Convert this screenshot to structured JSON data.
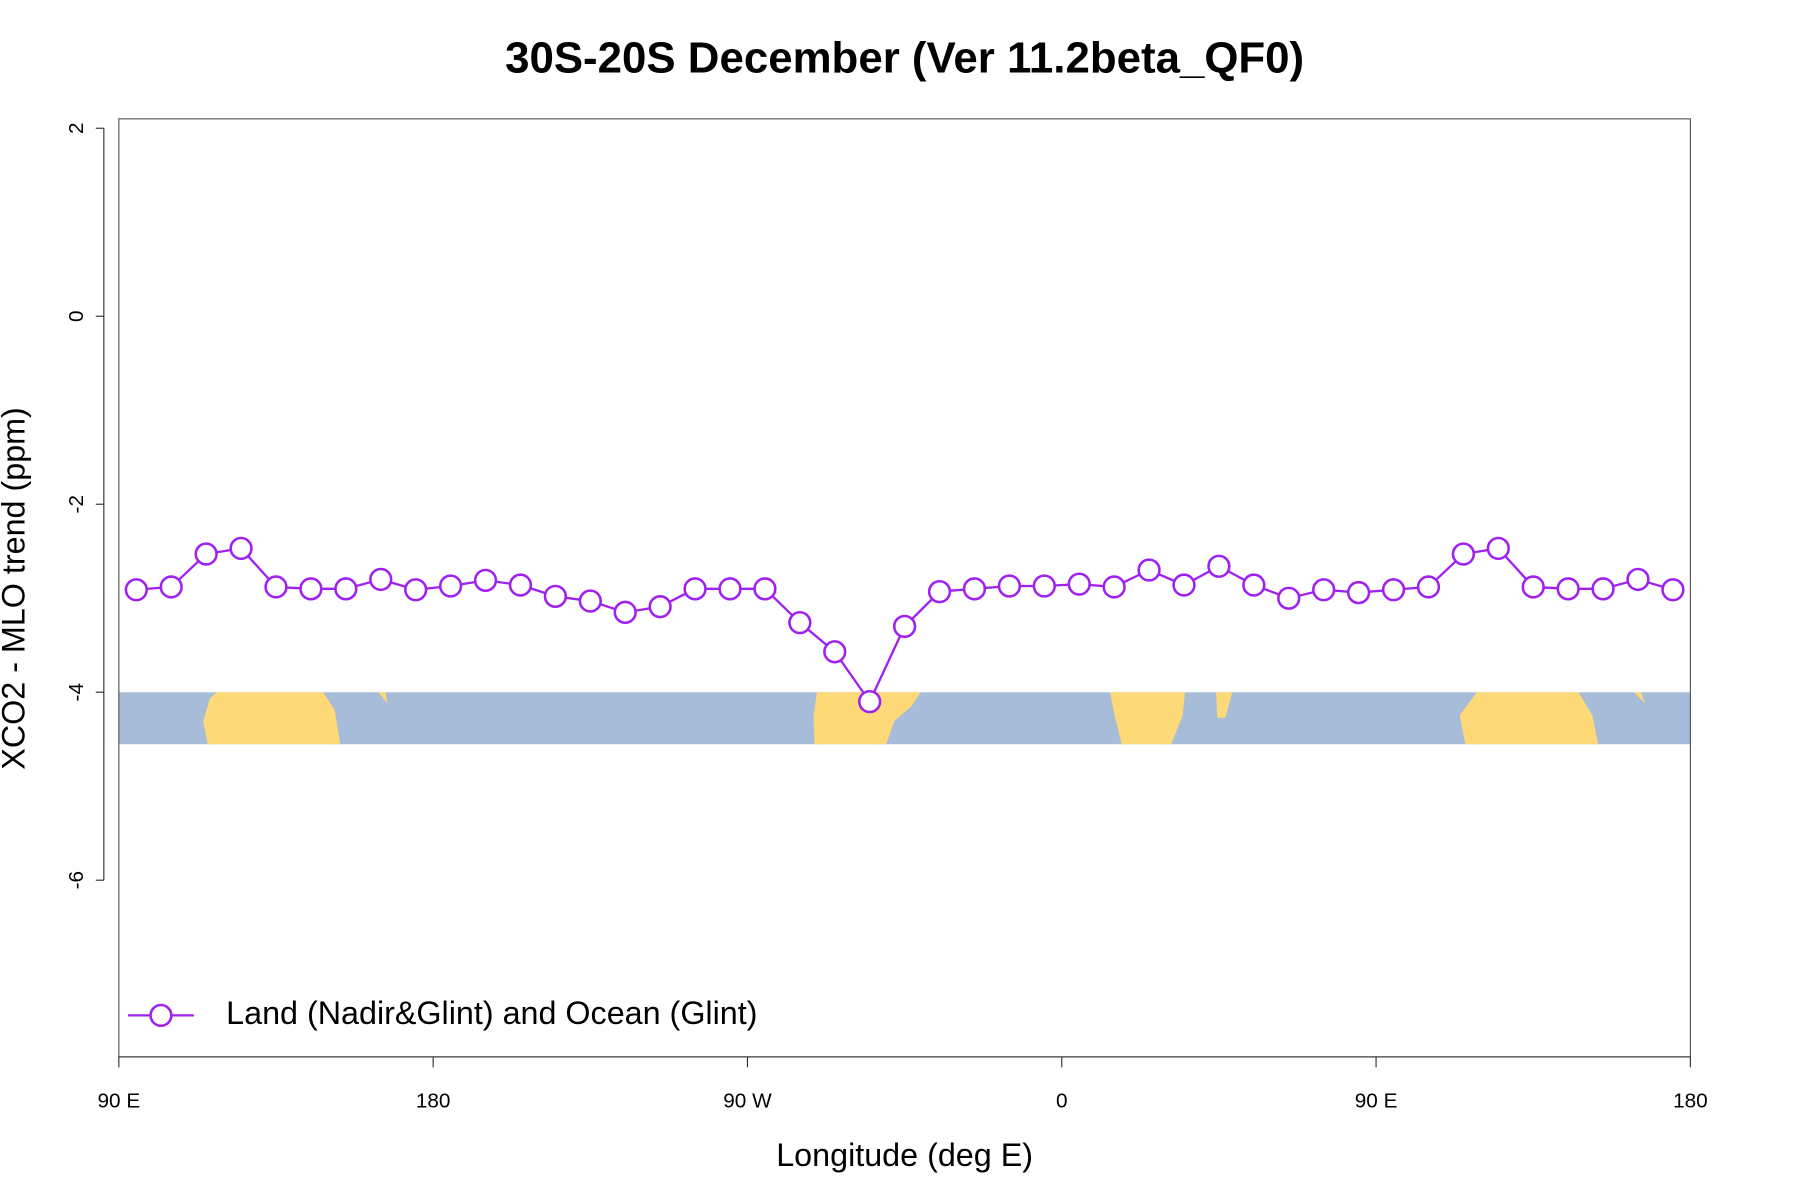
{
  "chart_data": {
    "type": "line",
    "title": "30S-20S December (Ver 11.2beta_QF0)",
    "x_label": "Longitude (deg E)",
    "y_label": "XCO2 - MLO trend (ppm)",
    "x": [
      95,
      105,
      115,
      125,
      135,
      145,
      155,
      165,
      175,
      185,
      195,
      205,
      215,
      225,
      235,
      245,
      255,
      265,
      275,
      285,
      295,
      305,
      315,
      325,
      335,
      345,
      355,
      365,
      375,
      385,
      395,
      405,
      415,
      425,
      435,
      445,
      455,
      465,
      475,
      485,
      495,
      505,
      515,
      525,
      535
    ],
    "series": [
      {
        "name": "Land (Nadir&Glint) and Ocean (Glint)",
        "color": "#a020f0",
        "values": [
          -2.91,
          -2.88,
          -2.53,
          -2.47,
          -2.88,
          -2.9,
          -2.9,
          -2.8,
          -2.91,
          -2.87,
          -2.81,
          -2.86,
          -2.98,
          -3.03,
          -3.15,
          -3.09,
          -2.9,
          -2.9,
          -2.9,
          -3.26,
          -3.57,
          -4.1,
          -3.3,
          -2.93,
          -2.9,
          -2.87,
          -2.87,
          -2.85,
          -2.88,
          -2.7,
          -2.86,
          -2.66,
          -2.86,
          -3.0,
          -2.91,
          -2.94,
          -2.91,
          -2.88,
          -2.53,
          -2.47,
          -2.88,
          -2.9,
          -2.9,
          -2.8,
          -2.91
        ]
      }
    ],
    "xlim": [
      90,
      540
    ],
    "ylim": [
      -7.88,
      2.1
    ],
    "xticks": [
      {
        "value": 90,
        "label": "90 E"
      },
      180,
      {
        "value": 270,
        "label": "90 W"
      },
      {
        "value": 360,
        "label": "0"
      },
      {
        "value": 450,
        "label": "90 E"
      },
      {
        "value": 540,
        "label": "180"
      }
    ],
    "yticks": [
      -6,
      -4,
      -2,
      0,
      2
    ],
    "legend": "bottom-left"
  }
}
